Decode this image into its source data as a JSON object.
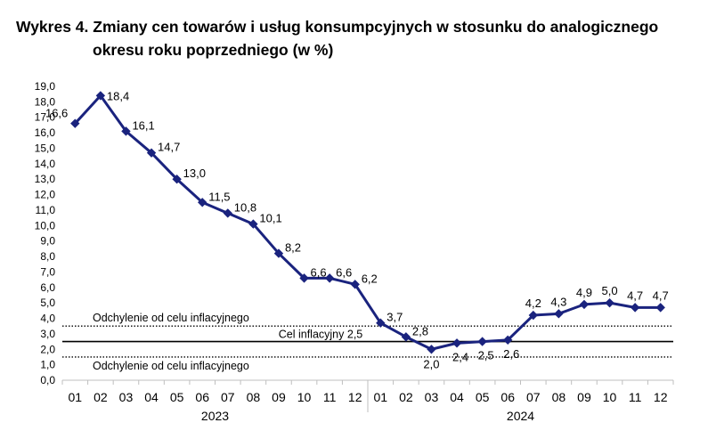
{
  "chart_data": {
    "type": "line",
    "title": "Wykres 4. Zmiany cen towarów i usług konsumpcyjnych w stosunku do analogicznego",
    "title_line2": "okresu roku poprzedniego (w %)",
    "months": [
      "01",
      "02",
      "03",
      "04",
      "05",
      "06",
      "07",
      "08",
      "09",
      "10",
      "11",
      "12",
      "01",
      "02",
      "03",
      "04",
      "05",
      "06",
      "07",
      "08",
      "09",
      "10",
      "11",
      "12"
    ],
    "years": [
      {
        "label": "2023",
        "start_index": 0,
        "end_index": 11
      },
      {
        "label": "2024",
        "start_index": 12,
        "end_index": 23
      }
    ],
    "values": [
      16.6,
      18.4,
      16.1,
      14.7,
      13.0,
      11.5,
      10.8,
      10.1,
      8.2,
      6.6,
      6.6,
      6.2,
      3.7,
      2.8,
      2.0,
      2.4,
      2.5,
      2.6,
      4.2,
      4.3,
      4.9,
      5.0,
      4.7,
      4.7
    ],
    "value_labels": [
      "16,6",
      "18,4",
      "16,1",
      "14,7",
      "13,0",
      "11,5",
      "10,8",
      "10,1",
      "8,2",
      "6,6",
      "6,6",
      "6,2",
      "3,7",
      "2,8",
      "2,0",
      "2,4",
      "2,5",
      "2,6",
      "4,2",
      "4,3",
      "4,9",
      "5,0",
      "4,7",
      "4,7"
    ],
    "label_side": [
      "left",
      "right",
      "right",
      "right",
      "right",
      "right",
      "right",
      "right",
      "right",
      "right",
      "right",
      "right",
      "right",
      "right",
      "below",
      "below",
      "below",
      "below",
      "above",
      "above",
      "above",
      "above",
      "above",
      "above"
    ],
    "ylim": [
      0,
      19
    ],
    "ystep": 1,
    "ytick_labels": [
      "0,0",
      "1,0",
      "2,0",
      "3,0",
      "4,0",
      "5,0",
      "6,0",
      "7,0",
      "8,0",
      "9,0",
      "10,0",
      "11,0",
      "12,0",
      "13,0",
      "14,0",
      "15,0",
      "16,0",
      "17,0",
      "18,0",
      "19,0"
    ],
    "grid": false,
    "series_color": "#1a237e",
    "reference_lines": [
      {
        "value": 3.5,
        "label": "Odchylenie od celu inflacyjnego",
        "style": "dotted",
        "label_pos": "above-left"
      },
      {
        "value": 2.5,
        "label": "Cel inflacyjny 2,5",
        "style": "solid",
        "label_pos": "above-center"
      },
      {
        "value": 1.5,
        "label": "Odchylenie od celu inflacyjnego",
        "style": "dotted",
        "label_pos": "below-left"
      }
    ]
  }
}
